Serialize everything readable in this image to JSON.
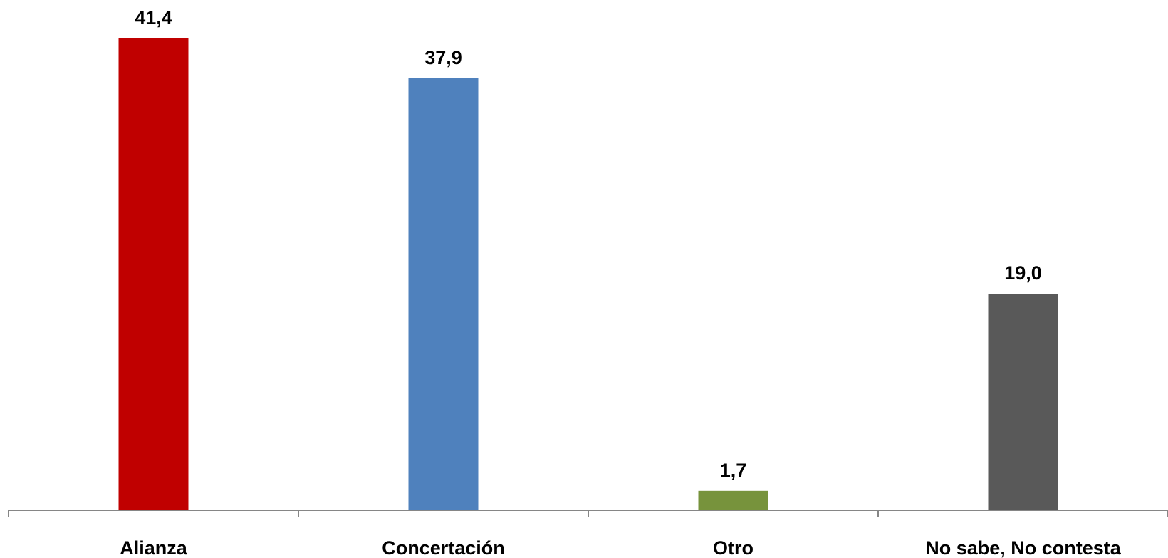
{
  "chart_data": {
    "type": "bar",
    "categories": [
      "Alianza",
      "Concertación",
      "Otro",
      "No sabe, No contesta"
    ],
    "values": [
      41.4,
      37.9,
      1.7,
      19.0
    ],
    "data_labels": [
      "41,4",
      "37,9",
      "1,7",
      "19,0"
    ],
    "colors": [
      "#c00000",
      "#4f81bd",
      "#77933c",
      "#595959"
    ],
    "axis_color": "#868686",
    "title": "",
    "xlabel": "",
    "ylabel": "",
    "ylim": [
      0,
      41.4
    ],
    "grid": false,
    "legend": "none"
  }
}
